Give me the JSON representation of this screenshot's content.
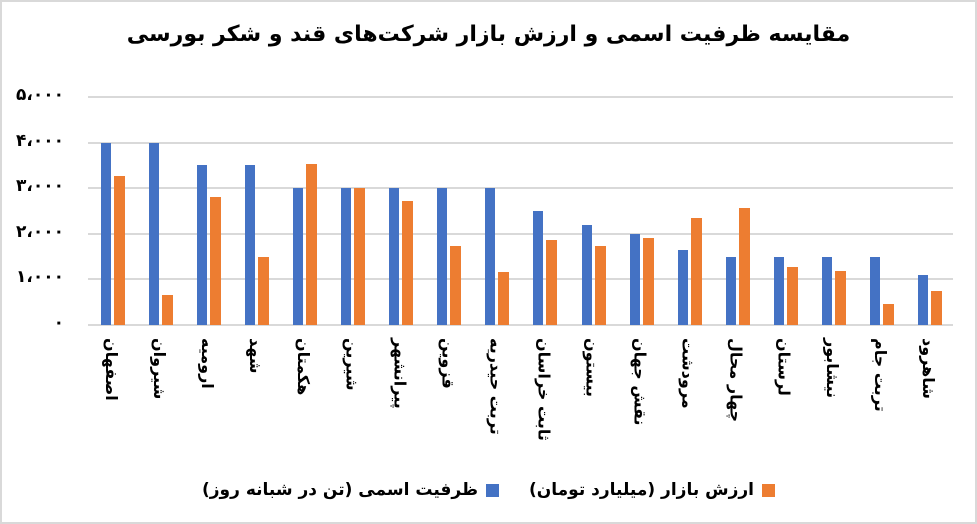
{
  "chart_data": {
    "type": "bar",
    "title": "مقایسه ظرفیت اسمی و ارزش بازار شرکت‌های قند و شکر بورسی",
    "xlabel": "",
    "ylabel": "",
    "ylim": [
      0,
      5000
    ],
    "yticks": [
      "۰",
      "۱،۰۰۰",
      "۲،۰۰۰",
      "۳،۰۰۰",
      "۴،۰۰۰",
      "۵،۰۰۰"
    ],
    "ytick_values": [
      0,
      1000,
      2000,
      3000,
      4000,
      5000
    ],
    "grid": true,
    "legend_position": "bottom",
    "categories": [
      "اصفهان",
      "شیروان",
      "ارومیه",
      "شهد",
      "هکمتان",
      "شیرین",
      "پیرانشهر",
      "قزوین",
      "تربت حیدریه",
      "ثابت خراسان",
      "بیستون",
      "نقش جهان",
      "مرودشت",
      "چهار محال",
      "لرستان",
      "نیشابور",
      "تربت جام",
      "شاهرود"
    ],
    "series": [
      {
        "name": "ظرفیت اسمی (تن در شبانه روز)",
        "color": "#4472c4",
        "values": [
          4000,
          4000,
          3500,
          3500,
          3000,
          3000,
          3000,
          3000,
          3000,
          2500,
          2200,
          2000,
          1650,
          1500,
          1500,
          1500,
          1500,
          1100
        ]
      },
      {
        "name": "ارزش بازار (میلیارد تومان)",
        "color": "#ed7d31",
        "values": [
          3270,
          660,
          2810,
          1500,
          3520,
          3000,
          2730,
          1735,
          1165,
          1870,
          1740,
          1915,
          2355,
          2575,
          1275,
          1190,
          460,
          750
        ]
      }
    ]
  },
  "legend": {
    "items": [
      {
        "label": "ظرفیت اسمی (تن در شبانه روز)",
        "color": "#4472c4"
      },
      {
        "label": "ارزش بازار (میلیارد تومان)",
        "color": "#ed7d31"
      }
    ]
  }
}
